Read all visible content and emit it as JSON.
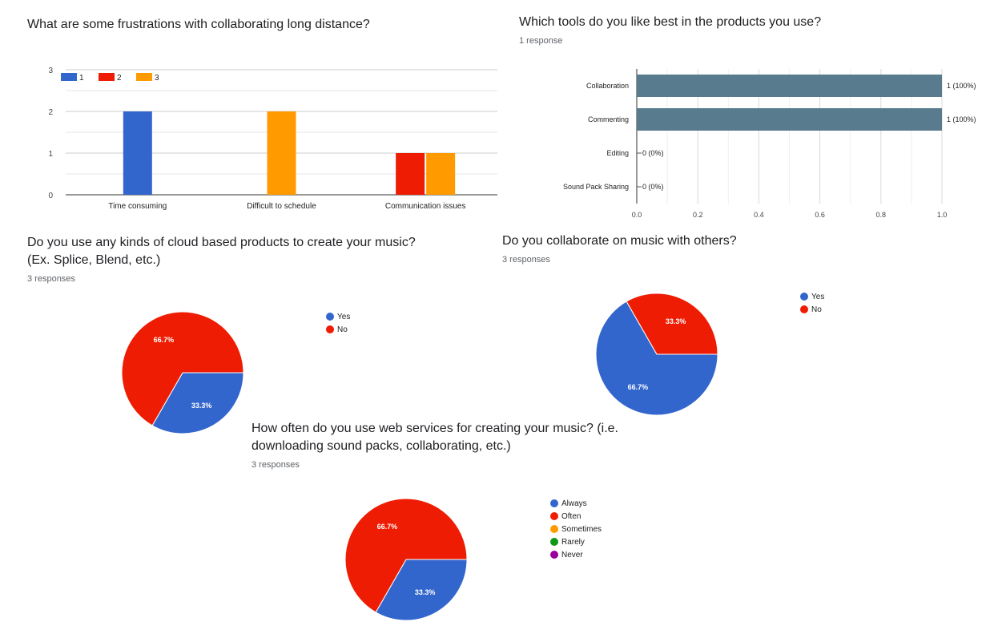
{
  "colors": {
    "blue": "#3366cc",
    "red": "#ee1c02",
    "orange": "#ff9a00",
    "green": "#109618",
    "purple": "#990099",
    "slate": "#587c8d"
  },
  "q1": {
    "title": "What are some frustrations with collaborating long distance?"
  },
  "q2": {
    "title": "Which tools do you like best in the products you use?",
    "responses": "1 response"
  },
  "q3": {
    "title_line1": "Do you use any kinds of cloud based products to create your music?",
    "title_line2": "(Ex. Splice, Blend, etc.)",
    "responses": "3 responses"
  },
  "q4": {
    "title": "Do you collaborate on music with others?",
    "responses": "3 responses"
  },
  "q5": {
    "title_line1": "How often do you use web services for creating your music? (i.e.",
    "title_line2": "downloading sound packs, collaborating, etc.)",
    "responses": "3 responses"
  },
  "chart_data": [
    {
      "type": "bar",
      "categories": [
        "Time consuming",
        "Difficult to schedule",
        "Communication issues"
      ],
      "series": [
        {
          "name": "1",
          "values": [
            2,
            0,
            0
          ]
        },
        {
          "name": "2",
          "values": [
            0,
            0,
            1
          ]
        },
        {
          "name": "3",
          "values": [
            0,
            2,
            1
          ]
        }
      ],
      "ylim": [
        0,
        3
      ],
      "yticks": [
        "0",
        "1",
        "2",
        "3"
      ],
      "legend": "top-left",
      "grid": true
    },
    {
      "type": "bar",
      "orientation": "horizontal",
      "categories": [
        "Collaboration",
        "Commenting",
        "Editing",
        "Sound Pack Sharing"
      ],
      "values": [
        1,
        1,
        0,
        0
      ],
      "data_labels": [
        "1 (100%)",
        "1 (100%)",
        "0 (0%)",
        "0 (0%)"
      ],
      "xlim": [
        0,
        1
      ],
      "xticks": [
        "0.0",
        "0.2",
        "0.4",
        "0.6",
        "0.8",
        "1.0"
      ],
      "grid": true
    },
    {
      "type": "pie",
      "labels": [
        "Yes",
        "No"
      ],
      "values": [
        33.3,
        66.7
      ],
      "slice_labels": [
        "33.3%",
        "66.7%"
      ],
      "legend": "right"
    },
    {
      "type": "pie",
      "labels": [
        "Yes",
        "No"
      ],
      "values": [
        66.7,
        33.3
      ],
      "slice_labels": [
        "66.7%",
        "33.3%"
      ],
      "legend": "right"
    },
    {
      "type": "pie",
      "labels": [
        "Always",
        "Often",
        "Sometimes",
        "Rarely",
        "Never"
      ],
      "values": [
        33.3,
        66.7,
        0,
        0,
        0
      ],
      "slice_labels": [
        "33.3%",
        "66.7%",
        "",
        "",
        ""
      ],
      "legend": "right"
    }
  ]
}
